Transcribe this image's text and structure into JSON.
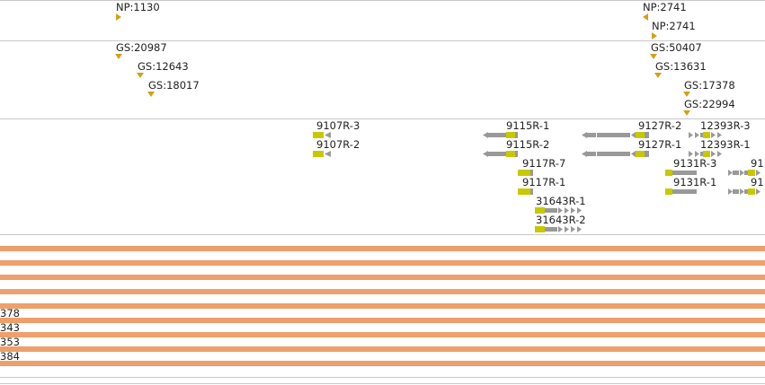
{
  "tracks": {
    "np": {
      "items": [
        {
          "label": "NP:1130",
          "dir": "right"
        },
        {
          "label": "NP:2741",
          "dir": "left"
        },
        {
          "label": "NP:2741",
          "dir": "right"
        }
      ]
    },
    "gs": {
      "items": [
        {
          "label": "GS:20987"
        },
        {
          "label": "GS:12643"
        },
        {
          "label": "GS:18017"
        },
        {
          "label": "GS:50407"
        },
        {
          "label": "GS:13631"
        },
        {
          "label": "GS:17378"
        },
        {
          "label": "GS:22994"
        }
      ]
    },
    "genes": {
      "items": [
        {
          "label": "9107R-3"
        },
        {
          "label": "9107R-2"
        },
        {
          "label": "9115R-1"
        },
        {
          "label": "9115R-2"
        },
        {
          "label": "9117R-7"
        },
        {
          "label": "9117R-1"
        },
        {
          "label": "31643R-1"
        },
        {
          "label": "31643R-2"
        },
        {
          "label": "9127R-2"
        },
        {
          "label": "9127R-1"
        },
        {
          "label": "12393R-3"
        },
        {
          "label": "12393R-1"
        },
        {
          "label": "9131R-3"
        },
        {
          "label": "9131R-1"
        },
        {
          "label": "91"
        },
        {
          "label": "91"
        }
      ]
    },
    "coverage": {
      "row_labels": [
        "378",
        "343",
        "353",
        "384"
      ]
    }
  },
  "colors": {
    "marker": "#d4a017",
    "exon": "#c8c800",
    "intron": "#999999",
    "coverage_bar": "#eda06b",
    "separator": "#c8c8c8"
  }
}
